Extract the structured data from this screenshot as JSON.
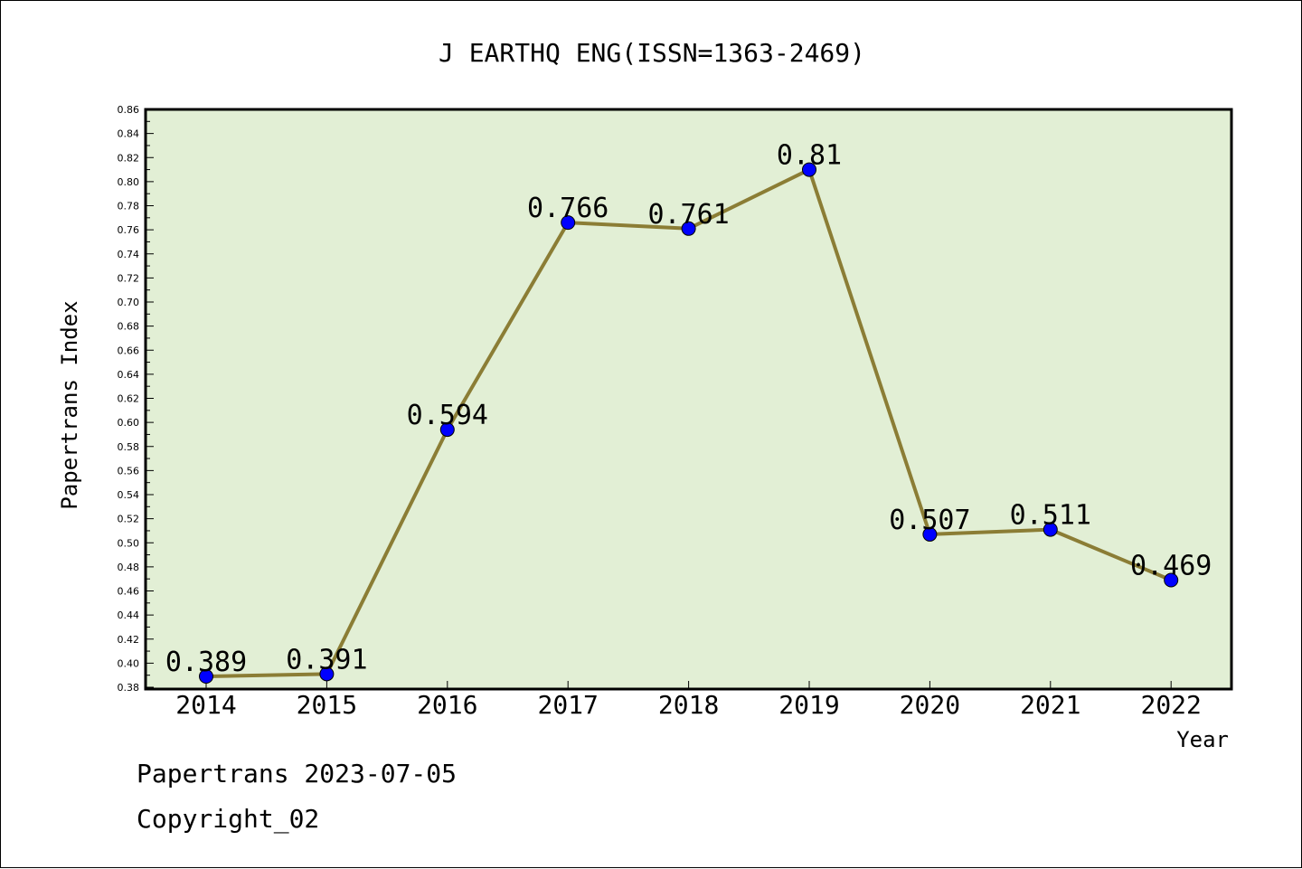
{
  "chart_data": {
    "type": "line",
    "title": "J EARTHQ ENG(ISSN=1363-2469)",
    "xlabel": "Year",
    "ylabel": "Papertrans Index",
    "categories": [
      "2014",
      "2015",
      "2016",
      "2017",
      "2018",
      "2019",
      "2020",
      "2021",
      "2022"
    ],
    "series": [
      {
        "values": [
          0.389,
          0.391,
          0.594,
          0.766,
          0.761,
          0.81,
          0.507,
          0.511,
          0.469
        ],
        "labels": [
          "0.389",
          "0.391",
          "0.594",
          "0.766",
          "0.761",
          "0.81",
          "0.507",
          "0.511",
          "0.469"
        ]
      }
    ],
    "ylim": [
      0.38,
      0.86
    ],
    "yticks": [
      "0.38",
      "0.40",
      "0.42",
      "0.44",
      "0.46",
      "0.48",
      "0.50",
      "0.52",
      "0.54",
      "0.56",
      "0.58",
      "0.60",
      "0.62",
      "0.64",
      "0.66",
      "0.68",
      "0.70",
      "0.72",
      "0.74",
      "0.76",
      "0.78",
      "0.80",
      "0.82",
      "0.84",
      "0.86"
    ],
    "grid": false,
    "colors": {
      "plot_background": "#e2efd5",
      "line": "#8b7d35",
      "marker": "#0000ff"
    }
  },
  "footer": {
    "line1": "Papertrans 2023-07-05",
    "line2": "Copyright_02"
  }
}
